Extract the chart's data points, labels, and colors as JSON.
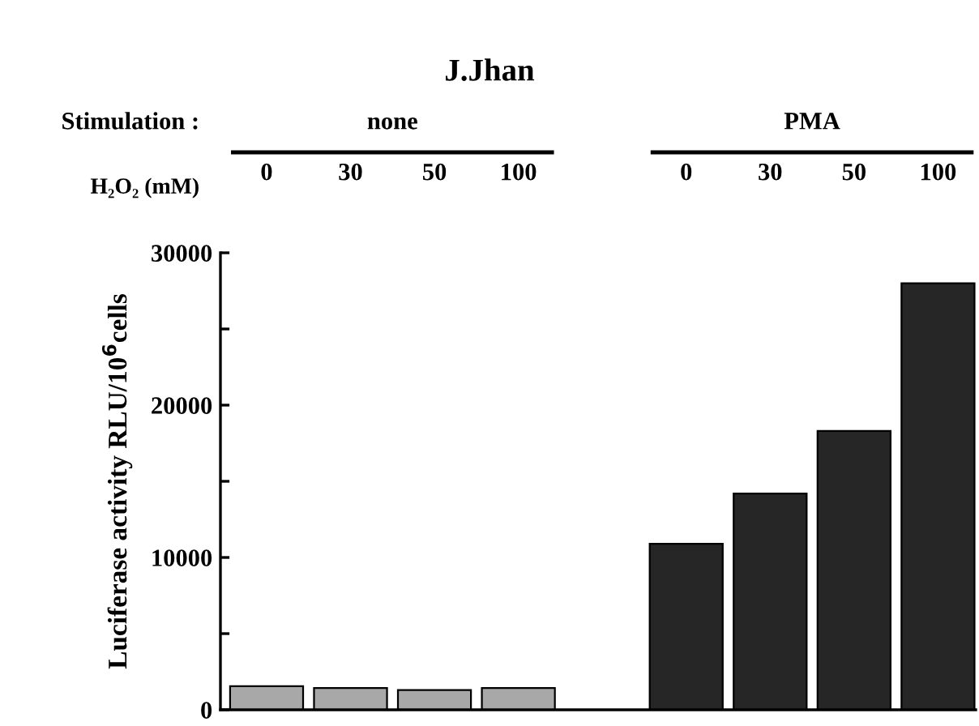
{
  "chart_data": {
    "type": "bar",
    "title": "J.Jhan",
    "xlabel": "H₂O₂ (mM)",
    "ylabel": "Luciferase activity RLU/10$^{6}$cells",
    "annotations": [
      "Stimulation :",
      "none",
      "PMA"
    ],
    "categories": [
      "0",
      "30",
      "50",
      "100",
      null,
      "0",
      "30",
      "50",
      "100"
    ],
    "values": [
      1550,
      1430,
      1300,
      1430,
      null,
      10900,
      14200,
      18300,
      28000
    ],
    "colors": [
      "#a8a8a8",
      "#a8a8a8",
      "#a8a8a8",
      "#a8a8a8",
      null,
      "#262626",
      "#262626",
      "#262626",
      "#262626"
    ],
    "ylim": [
      0,
      30000
    ],
    "yticks": [
      0,
      {
        "value": 5000,
        "label": null
      },
      10000,
      {
        "value": 15000,
        "label": null
      },
      20000,
      {
        "value": 25000,
        "label": null
      },
      30000
    ],
    "grid": false,
    "legend": false
  }
}
